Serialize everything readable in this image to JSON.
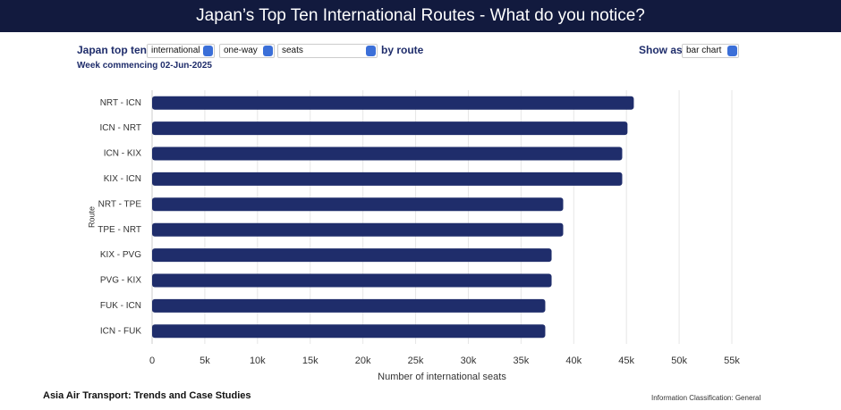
{
  "header": {
    "title": "Japan’s Top Ten International Routes - What do you notice?"
  },
  "controls": {
    "lead": "Japan top ten",
    "scope": "international",
    "direction": "one-way",
    "measure": "seats",
    "by": "by route",
    "show_as_label": "Show as",
    "show_as": "bar chart",
    "week": "Week commencing 02-Jun-2025"
  },
  "chart_data": {
    "type": "barh",
    "categories": [
      "NRT - ICN",
      "ICN - NRT",
      "ICN - KIX",
      "KIX - ICN",
      "NRT - TPE",
      "TPE - NRT",
      "KIX - PVG",
      "PVG - KIX",
      "FUK - ICN",
      "ICN - FUK"
    ],
    "values": [
      45700,
      45100,
      44600,
      44600,
      39000,
      39000,
      37900,
      37900,
      37300,
      37300
    ],
    "color": "#1f2d6b",
    "xlim": [
      0,
      55000
    ],
    "xticks": [
      0,
      {
        "value": 5000,
        "label": "5k"
      },
      {
        "value": 10000,
        "label": "10k"
      },
      {
        "value": 15000,
        "label": "15k"
      },
      {
        "value": 20000,
        "label": "20k"
      },
      {
        "value": 25000,
        "label": "25k"
      },
      {
        "value": 30000,
        "label": "30k"
      },
      {
        "value": 35000,
        "label": "35k"
      },
      {
        "value": 40000,
        "label": "40k"
      },
      {
        "value": 45000,
        "label": "45k"
      },
      {
        "value": 50000,
        "label": "50k"
      },
      {
        "value": 55000,
        "label": "55k"
      }
    ],
    "xlabel": "Number of international seats",
    "ylabel": "Route",
    "grid": true
  },
  "footer": {
    "source": "Asia Air Transport: Trends and Case Studies",
    "classification": "Information Classification: General"
  }
}
